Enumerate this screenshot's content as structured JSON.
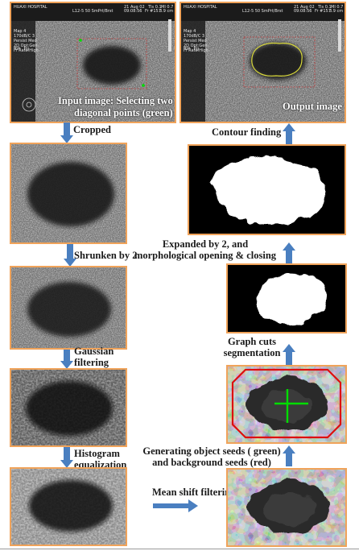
{
  "header": {
    "hospital": "HUAXI HOSPITAL",
    "probe": "L12-5 50 SmPrt/Brst",
    "date": "21 Aug 02",
    "time": "09:08:56",
    "tis": "TIs 0.1",
    "mi": "MI 0.7",
    "frame": "Fr #157",
    "depth": "3.9 cm",
    "side": [
      "Map 4",
      "170dB/C 3",
      "Persist Med",
      "2D Opt:Gen",
      "Fr Rate:High"
    ],
    "bw": "BW",
    "pg": "Pg"
  },
  "colors": {
    "border": "#f0a35a",
    "arrow": "#4a7fc0",
    "seed_object": "#00dd00",
    "seed_background": "#dd1010",
    "contour": "#d9d93a",
    "crop_box": "#c84040"
  },
  "nodes": {
    "input": {
      "caption_line1": "Input image: Selecting two",
      "caption_line2": "diagonal points (green)"
    },
    "output": {
      "caption": "Output image"
    }
  },
  "steps": {
    "cropped": "Cropped",
    "shrunken": "Shrunken by 2",
    "gaussian_line1": "Gaussian",
    "gaussian_line2": "filtering",
    "histogram_line1": "Histogram",
    "histogram_line2": "equalization",
    "mean_shift": "Mean shift filtering",
    "seeds_line1": "Generating object seeds ( green)",
    "seeds_line2": "and background seeds (red)",
    "graph_cuts_line1": "Graph cuts",
    "graph_cuts_line2": "segmentation",
    "expanded_line1": "Expanded by 2, and",
    "expanded_line2": "morphological opening & closing",
    "contour": "Contour finding"
  }
}
